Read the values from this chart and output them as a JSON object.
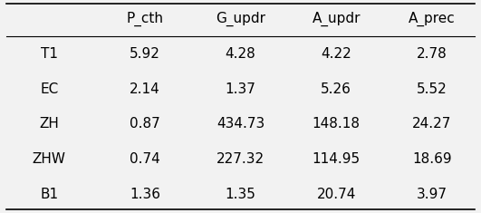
{
  "columns": [
    "",
    "P_cth",
    "G_updr",
    "A_updr",
    "A_prec"
  ],
  "rows": [
    [
      "T1",
      "5.92",
      "4.28",
      "4.22",
      "2.78"
    ],
    [
      "EC",
      "2.14",
      "1.37",
      "5.26",
      "5.52"
    ],
    [
      "ZH",
      "0.87",
      "434.73",
      "148.18",
      "24.27"
    ],
    [
      "ZHW",
      "0.74",
      "227.32",
      "114.95",
      "18.69"
    ],
    [
      "B1",
      "1.36",
      "1.35",
      "20.74",
      "3.97"
    ]
  ],
  "background_color": "#f2f2f2",
  "text_color": "#000000",
  "font_size": 11,
  "header_font_size": 11
}
